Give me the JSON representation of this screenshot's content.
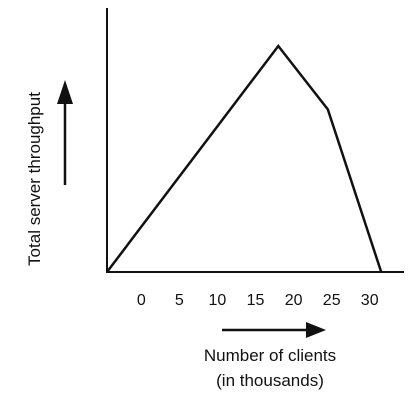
{
  "chart_data": {
    "type": "line",
    "title": "",
    "xlabel_line1": "Number of clients",
    "xlabel_line2": "(in thousands)",
    "ylabel": "Total server throughput",
    "x_ticks": [
      "0",
      "5",
      "10",
      "15",
      "20",
      "25",
      "30"
    ],
    "x_tick_values": [
      0,
      5,
      10,
      15,
      20,
      25,
      30
    ],
    "xlim": [
      -4.5,
      34.5
    ],
    "ylim": [
      0,
      100
    ],
    "grid": false,
    "legend": "none",
    "y_tick_labels_shown": false,
    "series": [
      {
        "x": [
          -4.5,
          18,
          24.5,
          31.5
        ],
        "y": [
          0,
          100,
          72,
          0
        ]
      }
    ],
    "line_color": "#111111"
  }
}
